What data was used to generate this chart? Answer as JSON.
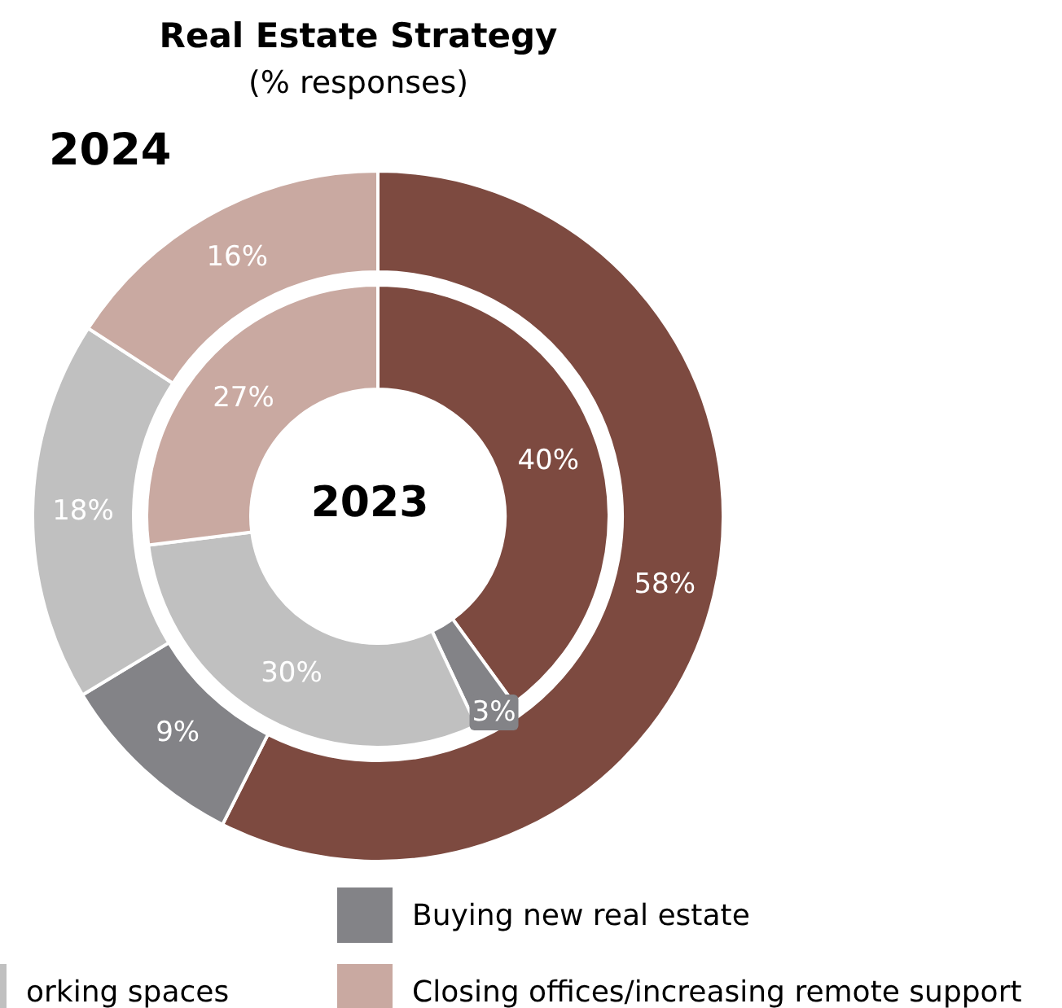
{
  "chart_data": {
    "type": "donut",
    "title": "Real Estate Strategy",
    "subtitle": "(% responses)",
    "categories": [
      null,
      "Buying new real estate",
      "orking spaces",
      "Closing offices/increasing remote support"
    ],
    "colors": [
      "#7d4a40",
      "#838387",
      "#c0c0c0",
      "#c9a9a1"
    ],
    "series": [
      {
        "name": "2024",
        "values": [
          58,
          9,
          18,
          16
        ],
        "value_labels": [
          "58%",
          "9%",
          "18%",
          "16%"
        ]
      },
      {
        "name": "2023",
        "values": [
          40,
          3,
          30,
          27
        ],
        "value_labels": [
          "40%",
          "3%",
          "30%",
          "27%"
        ]
      }
    ],
    "legend": "bottom"
  }
}
